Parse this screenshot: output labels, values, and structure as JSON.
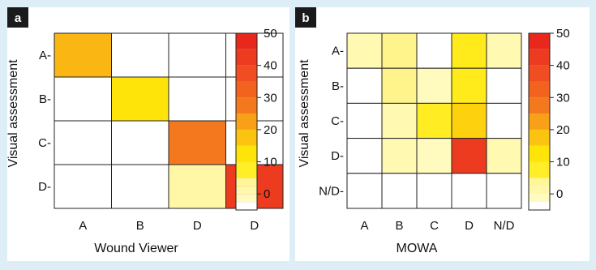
{
  "chart_data": [
    {
      "type": "heatmap",
      "panel_label": "a",
      "xlabel": "Wound Viewer",
      "ylabel": "Visual assessment",
      "x_categories": [
        "A",
        "B",
        "D",
        "D"
      ],
      "y_categories": [
        "A",
        "B",
        "C",
        "D"
      ],
      "values": [
        [
          22,
          0,
          0,
          0
        ],
        [
          0,
          15,
          0,
          0
        ],
        [
          0,
          0,
          30,
          0
        ],
        [
          0,
          0,
          3,
          45
        ]
      ],
      "colorbar": {
        "ticks": [
          0,
          10,
          20,
          30,
          40,
          50
        ],
        "tick_labels": [
          "0",
          "10",
          "20",
          "30",
          "40",
          "50"
        ],
        "range": [
          -5,
          50
        ],
        "position": "right"
      },
      "grid": true,
      "legend": "none"
    },
    {
      "type": "heatmap",
      "panel_label": "b",
      "xlabel": "MOWA",
      "ylabel": "Visual assessment",
      "x_categories": [
        "A",
        "B",
        "C",
        "D",
        "N/D"
      ],
      "y_categories": [
        "A",
        "B",
        "C",
        "D",
        "N/D"
      ],
      "values": [
        [
          2,
          5,
          0,
          12,
          2
        ],
        [
          0,
          5,
          1,
          12,
          0
        ],
        [
          0,
          2,
          11,
          18,
          0
        ],
        [
          0,
          2,
          1,
          45,
          2
        ],
        [
          0,
          0,
          0,
          0,
          0
        ]
      ],
      "colorbar": {
        "ticks": [
          0,
          10,
          20,
          30,
          40,
          50
        ],
        "tick_labels": [
          "0",
          "10",
          "20",
          "30",
          "40",
          "50"
        ],
        "range": [
          -5,
          50
        ],
        "position": "right"
      },
      "grid": true,
      "legend": "none"
    }
  ]
}
